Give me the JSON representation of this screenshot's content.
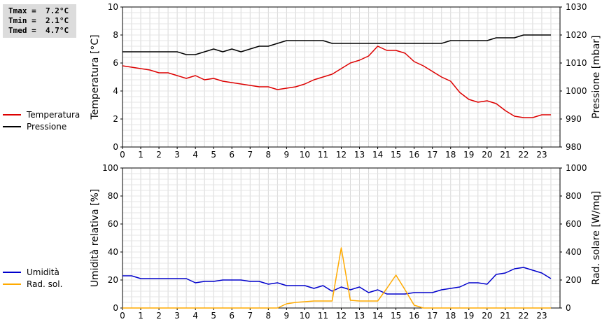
{
  "stats": {
    "tmax": "Tmax =  7.2°C",
    "tmin": "Tmin =  2.1°C",
    "tmed": "Tmed =  4.7°C"
  },
  "legend_top": [
    {
      "label": "Temperatura",
      "color": "#dd0000"
    },
    {
      "label": "Pressione",
      "color": "#000000"
    }
  ],
  "legend_bottom": [
    {
      "label": "Umidità",
      "color": "#0000cc"
    },
    {
      "label": "Rad. sol.",
      "color": "#ffaa00"
    }
  ],
  "chart_data": [
    {
      "type": "line",
      "ylabel": "Temperatura [°C]",
      "y2label": "Pressione [mbar]",
      "xlim": [
        0,
        24
      ],
      "ylim": [
        0,
        10
      ],
      "y2lim": [
        980,
        1030
      ],
      "xticks": [
        "0",
        "1",
        "2",
        "3",
        "4",
        "5",
        "6",
        "7",
        "8",
        "9",
        "10",
        "11",
        "12",
        "13",
        "14",
        "15",
        "16",
        "17",
        "18",
        "19",
        "20",
        "21",
        "22",
        "23"
      ],
      "yticks": [
        "0",
        "2",
        "4",
        "6",
        "8",
        "10"
      ],
      "y2ticks": [
        "980",
        "990",
        "1000",
        "1010",
        "1020",
        "1030"
      ],
      "grid": true,
      "series": [
        {
          "name": "Temperatura",
          "color": "#dd0000",
          "axis": "left",
          "x": [
            0,
            0.5,
            1,
            1.5,
            2,
            2.5,
            3,
            3.5,
            4,
            4.5,
            5,
            5.5,
            6,
            6.5,
            7,
            7.5,
            8,
            8.5,
            9,
            9.5,
            10,
            10.5,
            11,
            11.5,
            12,
            12.5,
            13,
            13.5,
            14,
            14.5,
            15,
            15.5,
            16,
            16.5,
            17,
            17.5,
            18,
            18.5,
            19,
            19.5,
            20,
            20.5,
            21,
            21.5,
            22,
            22.5,
            23,
            23.5
          ],
          "y": [
            5.8,
            5.7,
            5.6,
            5.5,
            5.3,
            5.3,
            5.1,
            4.9,
            5.1,
            4.8,
            4.9,
            4.7,
            4.6,
            4.5,
            4.4,
            4.3,
            4.3,
            4.1,
            4.2,
            4.3,
            4.5,
            4.8,
            5.0,
            5.2,
            5.6,
            6.0,
            6.2,
            6.5,
            7.2,
            6.9,
            6.9,
            6.7,
            6.1,
            5.8,
            5.4,
            5.0,
            4.7,
            3.9,
            3.4,
            3.2,
            3.3,
            3.1,
            2.6,
            2.2,
            2.1,
            2.1,
            2.3,
            2.3
          ]
        },
        {
          "name": "Pressione",
          "color": "#000000",
          "axis": "right",
          "x": [
            0,
            0.5,
            1,
            1.5,
            2,
            2.5,
            3,
            3.5,
            4,
            4.5,
            5,
            5.5,
            6,
            6.5,
            7,
            7.5,
            8,
            8.5,
            9,
            9.5,
            10,
            10.5,
            11,
            11.5,
            12,
            12.5,
            13,
            13.5,
            14,
            14.5,
            15,
            15.5,
            16,
            16.5,
            17,
            17.5,
            18,
            18.5,
            19,
            19.5,
            20,
            20.5,
            21,
            21.5,
            22,
            22.5,
            23,
            23.5
          ],
          "y": [
            1014,
            1014,
            1014,
            1014,
            1014,
            1014,
            1014,
            1013,
            1013,
            1014,
            1015,
            1014,
            1015,
            1014,
            1015,
            1016,
            1016,
            1017,
            1018,
            1018,
            1018,
            1018,
            1018,
            1017,
            1017,
            1017,
            1017,
            1017,
            1017,
            1017,
            1017,
            1017,
            1017,
            1017,
            1017,
            1017,
            1018,
            1018,
            1018,
            1018,
            1018,
            1019,
            1019,
            1019,
            1020,
            1020,
            1020,
            1020
          ]
        }
      ]
    },
    {
      "type": "line",
      "ylabel": "Umidità relativa [%]",
      "y2label": "Rad. solare [W/mq]",
      "xlim": [
        0,
        24
      ],
      "ylim": [
        0,
        100
      ],
      "y2lim": [
        0,
        1000
      ],
      "xticks": [
        "0",
        "1",
        "2",
        "3",
        "4",
        "5",
        "6",
        "7",
        "8",
        "9",
        "10",
        "11",
        "12",
        "13",
        "14",
        "15",
        "16",
        "17",
        "18",
        "19",
        "20",
        "21",
        "22",
        "23"
      ],
      "yticks": [
        "0",
        "20",
        "40",
        "60",
        "80",
        "100"
      ],
      "y2ticks": [
        "0",
        "200",
        "400",
        "600",
        "800",
        "1000"
      ],
      "grid": true,
      "series": [
        {
          "name": "Umidità",
          "color": "#0000cc",
          "axis": "left",
          "x": [
            0,
            0.5,
            1,
            1.5,
            2,
            2.5,
            3,
            3.5,
            4,
            4.5,
            5,
            5.5,
            6,
            6.5,
            7,
            7.5,
            8,
            8.5,
            9,
            9.5,
            10,
            10.5,
            11,
            11.5,
            12,
            12.5,
            13,
            13.5,
            14,
            14.5,
            15,
            15.5,
            16,
            16.5,
            17,
            17.5,
            18,
            18.5,
            19,
            19.5,
            20,
            20.5,
            21,
            21.5,
            22,
            22.5,
            23,
            23.5
          ],
          "y": [
            23,
            23,
            21,
            21,
            21,
            21,
            21,
            21,
            18,
            19,
            19,
            20,
            20,
            20,
            19,
            19,
            17,
            18,
            16,
            16,
            16,
            14,
            16,
            12,
            15,
            13,
            15,
            11,
            13,
            10,
            10,
            10,
            11,
            11,
            11,
            13,
            14,
            15,
            18,
            18,
            17,
            24,
            25,
            28,
            29,
            27,
            25,
            21
          ]
        },
        {
          "name": "Rad. sol.",
          "color": "#ffaa00",
          "axis": "right",
          "x": [
            0,
            0.5,
            1,
            1.5,
            2,
            2.5,
            3,
            3.5,
            4,
            4.5,
            5,
            5.5,
            6,
            6.5,
            7,
            7.5,
            8,
            8.5,
            9,
            9.5,
            10,
            10.5,
            11,
            11.5,
            12,
            12.5,
            13,
            13.5,
            14,
            14.5,
            15,
            15.5,
            16,
            16.5,
            17,
            17.5,
            18,
            18.5,
            19,
            19.5,
            20,
            20.5,
            21,
            21.5,
            22,
            22.5,
            23,
            23.5
          ],
          "y": [
            0,
            0,
            0,
            0,
            0,
            0,
            0,
            0,
            0,
            0,
            0,
            0,
            0,
            0,
            0,
            0,
            0,
            0,
            30,
            40,
            45,
            50,
            50,
            50,
            430,
            55,
            50,
            50,
            50,
            140,
            235,
            130,
            20,
            0,
            0,
            0,
            0,
            0,
            0,
            0,
            0,
            0,
            0,
            0,
            0,
            0,
            0,
            0
          ]
        }
      ]
    }
  ]
}
